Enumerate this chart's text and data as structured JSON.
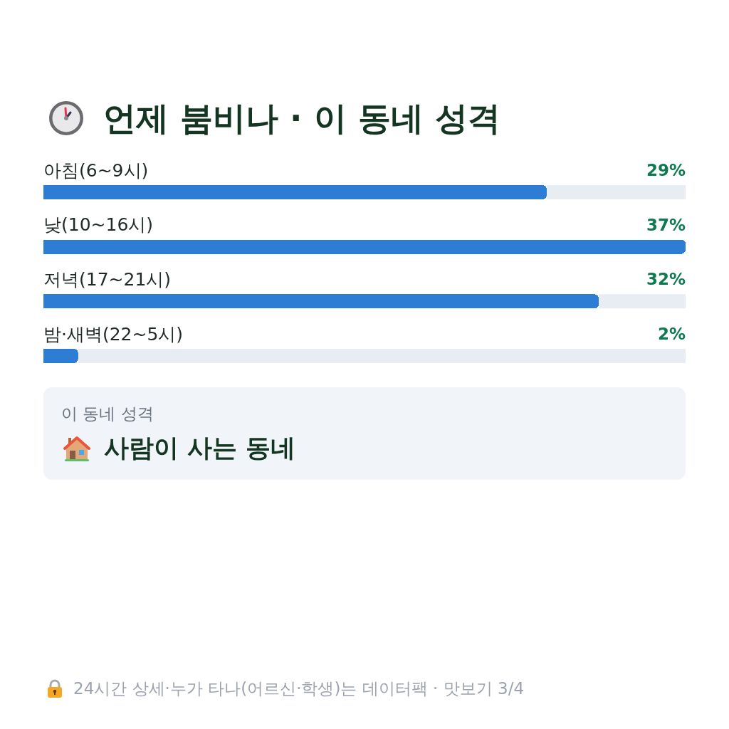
{
  "chart_data": {
    "type": "bar",
    "orientation": "horizontal",
    "title": "언제 붐비나 · 이 동네 성격",
    "categories": [
      "아침(6~9시)",
      "낮(10~16시)",
      "저녁(17~21시)",
      "밤·새벽(22~5시)"
    ],
    "values": [
      29,
      37,
      32,
      2
    ],
    "value_labels": [
      "29%",
      "37%",
      "32%",
      "2%"
    ],
    "color": "#2e7dd4",
    "xlim": [
      0,
      37
    ],
    "tick_labels": "y",
    "annotations": [
      "이 동네 성격",
      "사람이 사는 동네",
      "24시간 상세·누가 타나(어르신·학생)는 데이터팩 · 맛보기 3/4"
    ]
  }
}
